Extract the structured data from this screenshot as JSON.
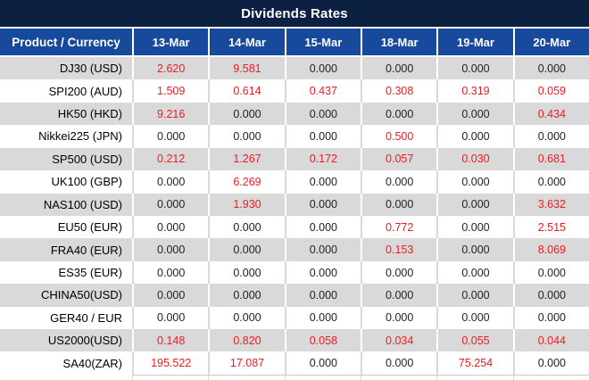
{
  "title": "Dividends Rates",
  "colors": {
    "title_bg": "#0c2141",
    "header_bg": "#17499c",
    "alt_row_bg": "#d9d9d9",
    "nonzero_value": "#ec1c24",
    "zero_value": "#1e2029"
  },
  "table": {
    "product_header": "Product / Currency",
    "date_headers": [
      "13-Mar",
      "14-Mar",
      "15-Mar",
      "18-Mar",
      "19-Mar",
      "20-Mar"
    ],
    "rows": [
      {
        "product": "DJ30 (USD)",
        "values": [
          "2.620",
          "9.581",
          "0.000",
          "0.000",
          "0.000",
          "0.000"
        ]
      },
      {
        "product": "SPI200 (AUD)",
        "values": [
          "1.509",
          "0.614",
          "0.437",
          "0.308",
          "0.319",
          "0.059"
        ]
      },
      {
        "product": "HK50 (HKD)",
        "values": [
          "9.216",
          "0.000",
          "0.000",
          "0.000",
          "0.000",
          "0.434"
        ]
      },
      {
        "product": "Nikkei225 (JPN)",
        "values": [
          "0.000",
          "0.000",
          "0.000",
          "0.500",
          "0.000",
          "0.000"
        ]
      },
      {
        "product": "SP500 (USD)",
        "values": [
          "0.212",
          "1.267",
          "0.172",
          "0.057",
          "0.030",
          "0.681"
        ]
      },
      {
        "product": "UK100 (GBP)",
        "values": [
          "0.000",
          "6.269",
          "0.000",
          "0.000",
          "0.000",
          "0.000"
        ]
      },
      {
        "product": "NAS100 (USD)",
        "values": [
          "0.000",
          "1.930",
          "0.000",
          "0.000",
          "0.000",
          "3.632"
        ]
      },
      {
        "product": "EU50 (EUR)",
        "values": [
          "0.000",
          "0.000",
          "0.000",
          "0.772",
          "0.000",
          "2.515"
        ]
      },
      {
        "product": "FRA40 (EUR)",
        "values": [
          "0.000",
          "0.000",
          "0.000",
          "0.153",
          "0.000",
          "8.069"
        ]
      },
      {
        "product": "ES35 (EUR)",
        "values": [
          "0.000",
          "0.000",
          "0.000",
          "0.000",
          "0.000",
          "0.000"
        ]
      },
      {
        "product": "CHINA50(USD)",
        "values": [
          "0.000",
          "0.000",
          "0.000",
          "0.000",
          "0.000",
          "0.000"
        ]
      },
      {
        "product": "GER40 / EUR",
        "values": [
          "0.000",
          "0.000",
          "0.000",
          "0.000",
          "0.000",
          "0.000"
        ]
      },
      {
        "product": "US2000(USD)",
        "values": [
          "0.148",
          "0.820",
          "0.058",
          "0.034",
          "0.055",
          "0.044"
        ]
      },
      {
        "product": "SA40(ZAR)",
        "values": [
          "195.522",
          "17.087",
          "0.000",
          "0.000",
          "75.254",
          "0.000"
        ]
      }
    ]
  }
}
